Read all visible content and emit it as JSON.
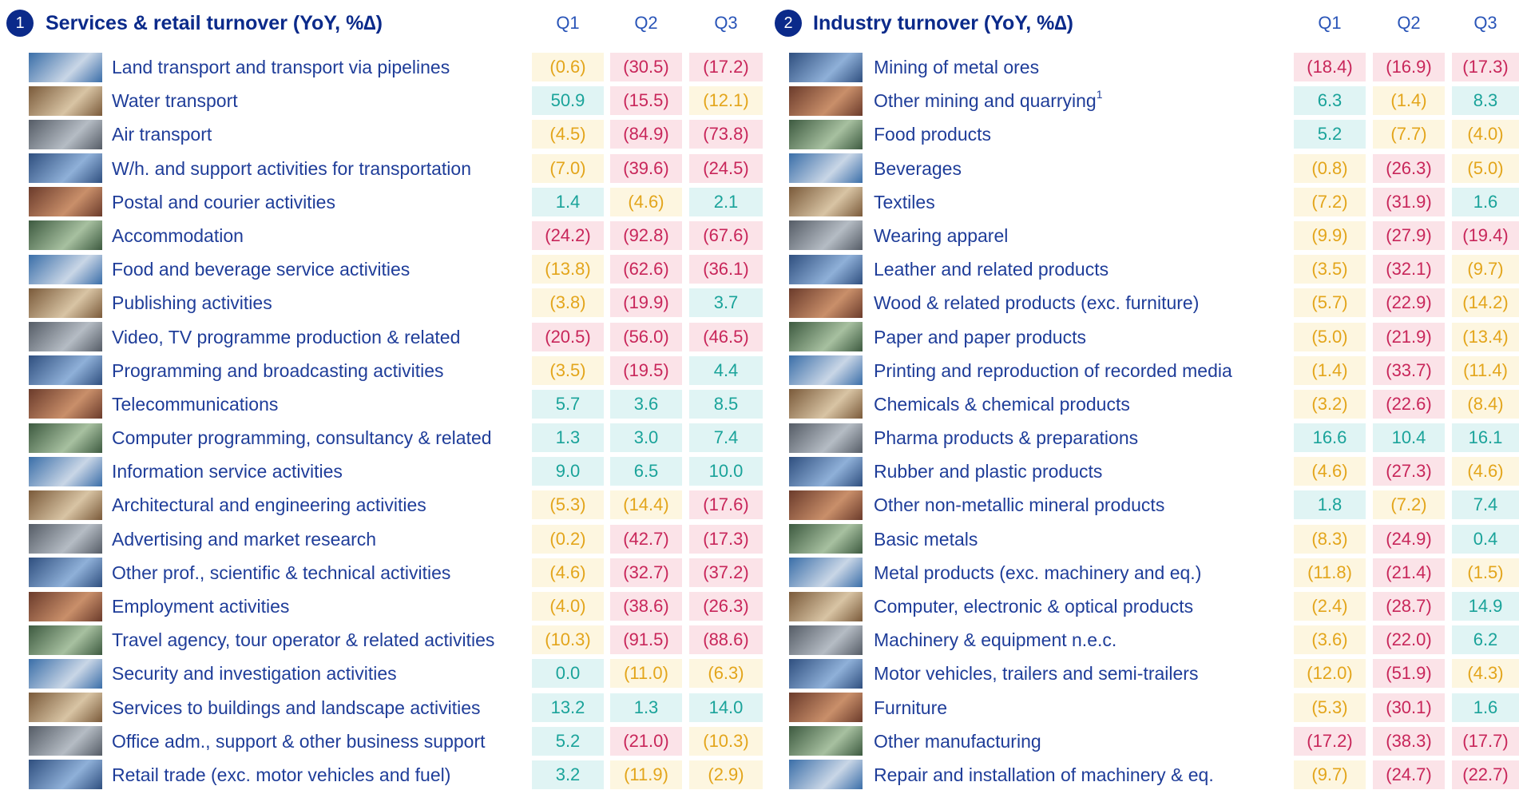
{
  "sections": [
    {
      "badge": "1",
      "title": "Services & retail turnover (YoY, %∆)",
      "columns": [
        "Q1",
        "Q2",
        "Q3"
      ],
      "rows": [
        {
          "label": "Land transport and transport via pipelines",
          "values": [
            "(0.6)",
            "(30.5)",
            "(17.2)"
          ]
        },
        {
          "label": "Water transport",
          "values": [
            "50.9",
            "(15.5)",
            "(12.1)"
          ]
        },
        {
          "label": "Air transport",
          "values": [
            "(4.5)",
            "(84.9)",
            "(73.8)"
          ]
        },
        {
          "label": "W/h. and support activities for transportation",
          "values": [
            "(7.0)",
            "(39.6)",
            "(24.5)"
          ]
        },
        {
          "label": "Postal and courier activities",
          "values": [
            "1.4",
            "(4.6)",
            "2.1"
          ]
        },
        {
          "label": "Accommodation",
          "values": [
            "(24.2)",
            "(92.8)",
            "(67.6)"
          ]
        },
        {
          "label": "Food and beverage service activities",
          "values": [
            "(13.8)",
            "(62.6)",
            "(36.1)"
          ]
        },
        {
          "label": "Publishing activities",
          "values": [
            "(3.8)",
            "(19.9)",
            "3.7"
          ]
        },
        {
          "label": "Video, TV programme production & related",
          "values": [
            "(20.5)",
            "(56.0)",
            "(46.5)"
          ]
        },
        {
          "label": "Programming and broadcasting activities",
          "values": [
            "(3.5)",
            "(19.5)",
            "4.4"
          ]
        },
        {
          "label": "Telecommunications",
          "values": [
            "5.7",
            "3.6",
            "8.5"
          ]
        },
        {
          "label": "Computer programming, consultancy & related",
          "values": [
            "1.3",
            "3.0",
            "7.4"
          ]
        },
        {
          "label": "Information service activities",
          "values": [
            "9.0",
            "6.5",
            "10.0"
          ]
        },
        {
          "label": "Architectural and engineering activities",
          "values": [
            "(5.3)",
            "(14.4)",
            "(17.6)"
          ]
        },
        {
          "label": "Advertising and market research",
          "values": [
            "(0.2)",
            "(42.7)",
            "(17.3)"
          ]
        },
        {
          "label": "Other prof., scientific & technical activities",
          "values": [
            "(4.6)",
            "(32.7)",
            "(37.2)"
          ]
        },
        {
          "label": "Employment activities",
          "values": [
            "(4.0)",
            "(38.6)",
            "(26.3)"
          ]
        },
        {
          "label": "Travel agency, tour operator & related activities",
          "values": [
            "(10.3)",
            "(91.5)",
            "(88.6)"
          ]
        },
        {
          "label": "Security and investigation activities",
          "values": [
            "0.0",
            "(11.0)",
            "(6.3)"
          ]
        },
        {
          "label": "Services to buildings and landscape activities",
          "values": [
            "13.2",
            "1.3",
            "14.0"
          ]
        },
        {
          "label": "Office adm., support & other business support",
          "values": [
            "5.2",
            "(21.0)",
            "(10.3)"
          ]
        },
        {
          "label": "Retail trade (exc. motor vehicles and fuel)",
          "values": [
            "3.2",
            "(11.9)",
            "(2.9)"
          ]
        }
      ]
    },
    {
      "badge": "2",
      "title": "Industry turnover (YoY, %∆)",
      "columns": [
        "Q1",
        "Q2",
        "Q3"
      ],
      "rows": [
        {
          "label": "Mining of metal ores",
          "values": [
            "(18.4)",
            "(16.9)",
            "(17.3)"
          ]
        },
        {
          "label": "Other mining and quarrying",
          "sup": "1",
          "values": [
            "6.3",
            "(1.4)",
            "8.3"
          ]
        },
        {
          "label": "Food products",
          "values": [
            "5.2",
            "(7.7)",
            "(4.0)"
          ]
        },
        {
          "label": "Beverages",
          "values": [
            "(0.8)",
            "(26.3)",
            "(5.0)"
          ]
        },
        {
          "label": "Textiles",
          "values": [
            "(7.2)",
            "(31.9)",
            "1.6"
          ]
        },
        {
          "label": "Wearing apparel",
          "values": [
            "(9.9)",
            "(27.9)",
            "(19.4)"
          ]
        },
        {
          "label": "Leather and related products",
          "values": [
            "(3.5)",
            "(32.1)",
            "(9.7)"
          ]
        },
        {
          "label": "Wood & related products (exc. furniture)",
          "values": [
            "(5.7)",
            "(22.9)",
            "(14.2)"
          ]
        },
        {
          "label": "Paper and paper products",
          "values": [
            "(5.0)",
            "(21.9)",
            "(13.4)"
          ]
        },
        {
          "label": "Printing and reproduction of recorded media",
          "values": [
            "(1.4)",
            "(33.7)",
            "(11.4)"
          ]
        },
        {
          "label": "Chemicals & chemical products",
          "values": [
            "(3.2)",
            "(22.6)",
            "(8.4)"
          ]
        },
        {
          "label": "Pharma products & preparations",
          "values": [
            "16.6",
            "10.4",
            "16.1"
          ]
        },
        {
          "label": "Rubber and plastic products",
          "values": [
            "(4.6)",
            "(27.3)",
            "(4.6)"
          ]
        },
        {
          "label": "Other non-metallic mineral products",
          "values": [
            "1.8",
            "(7.2)",
            "7.4"
          ]
        },
        {
          "label": "Basic metals",
          "values": [
            "(8.3)",
            "(24.9)",
            "0.4"
          ]
        },
        {
          "label": "Metal products (exc. machinery and eq.)",
          "values": [
            "(11.8)",
            "(21.4)",
            "(1.5)"
          ]
        },
        {
          "label": "Computer, electronic & optical products",
          "values": [
            "(2.4)",
            "(28.7)",
            "14.9"
          ]
        },
        {
          "label": "Machinery & equipment n.e.c.",
          "values": [
            "(3.6)",
            "(22.0)",
            "6.2"
          ]
        },
        {
          "label": "Motor vehicles, trailers and semi-trailers",
          "values": [
            "(12.0)",
            "(51.9)",
            "(4.3)"
          ]
        },
        {
          "label": "Furniture",
          "values": [
            "(5.3)",
            "(30.1)",
            "1.6"
          ]
        },
        {
          "label": "Other manufacturing",
          "values": [
            "(17.2)",
            "(38.3)",
            "(17.7)"
          ]
        },
        {
          "label": "Repair and installation of machinery & eq.",
          "values": [
            "(9.7)",
            "(24.7)",
            "(22.7)"
          ]
        }
      ]
    }
  ]
}
